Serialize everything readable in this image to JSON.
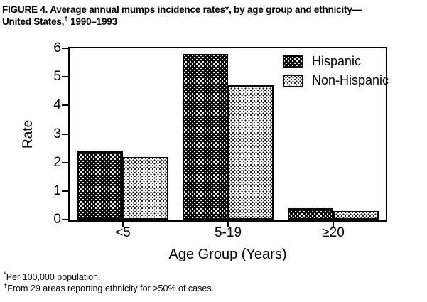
{
  "figure": {
    "title_line1": "FIGURE 4. Average annual mumps incidence rates*, by age group and ethnicity—",
    "title_line2_pre": "United States,",
    "title_line2_marker": "†",
    "title_line2_post": " 1990–1993"
  },
  "footnotes": [
    {
      "marker": "*",
      "text": "Per 100,000 population."
    },
    {
      "marker": "†",
      "text": "From 29 areas reporting ethnicity for >50% of cases."
    }
  ],
  "chart_data": {
    "type": "bar",
    "title": "Average annual mumps incidence rates, by age group and ethnicity — United States, 1990–1993",
    "categories": [
      "<5",
      "5-19",
      "≥20"
    ],
    "series": [
      {
        "name": "Hispanic",
        "values": [
          2.4,
          5.8,
          0.4
        ],
        "pattern": "black-with-white-dots",
        "fill": "#000000",
        "dot": "#ffffff"
      },
      {
        "name": "Non-Hispanic",
        "values": [
          2.2,
          4.7,
          0.3
        ],
        "pattern": "white-with-black-dots",
        "fill": "#ffffff",
        "dot": "#000000"
      }
    ],
    "xlabel": "Age Group (Years)",
    "ylabel": "Rate",
    "ylim": [
      0,
      6
    ],
    "yticks": [
      0,
      1,
      2,
      3,
      4,
      5,
      6
    ],
    "grid": false,
    "legend_position": "top-right-inside",
    "plot_background": "#ffffff",
    "frame_color": "#000000"
  },
  "colors": {
    "foreground": "#000000",
    "background": "#ffffff"
  }
}
